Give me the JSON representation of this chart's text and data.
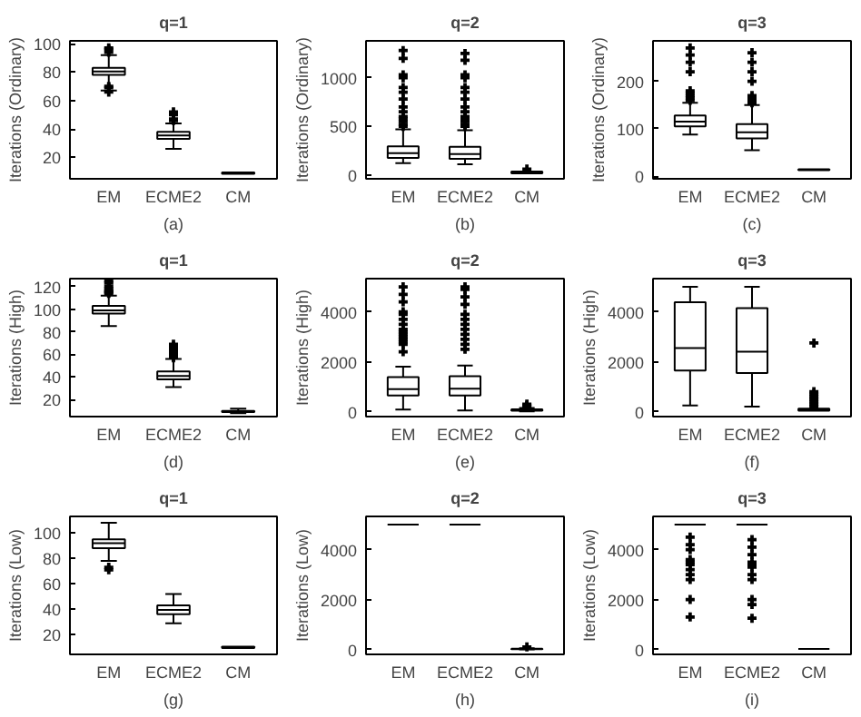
{
  "chart_data": [
    {
      "type": "box",
      "title": "q=1",
      "xlabel": "(a)",
      "ylabel": "Iterations (Ordinary)",
      "categories": [
        "EM",
        "ECME2",
        "CM"
      ],
      "ylim": [
        5,
        102
      ],
      "yticks": [
        20,
        40,
        60,
        80,
        100
      ],
      "grid": false,
      "marker": "cross",
      "boxes": [
        {
          "low": 67,
          "q1": 78,
          "median": 80.5,
          "q3": 83,
          "high": 92,
          "outliers": [
            94,
            96,
            97,
            70,
            69,
            66
          ]
        },
        {
          "low": 26,
          "q1": 33,
          "median": 35.5,
          "q3": 38,
          "high": 44,
          "outliers": [
            46,
            47,
            50,
            52
          ]
        },
        {
          "low": 8.5,
          "q1": 8.5,
          "median": 9,
          "q3": 9.5,
          "high": 9.5
        }
      ]
    },
    {
      "type": "box",
      "title": "q=2",
      "xlabel": "(b)",
      "ylabel": "Iterations (Ordinary)",
      "categories": [
        "EM",
        "ECME2",
        "CM"
      ],
      "ylim": [
        -40,
        1380
      ],
      "yticks": [
        0,
        500,
        1000
      ],
      "grid": false,
      "marker": "cross",
      "boxes": [
        {
          "low": 120,
          "q1": 175,
          "median": 225,
          "q3": 295,
          "high": 470,
          "outliers": [
            500,
            520,
            550,
            580,
            600,
            650,
            700,
            780,
            850,
            900,
            1000,
            1030,
            1200,
            1280
          ]
        },
        {
          "low": 110,
          "q1": 165,
          "median": 215,
          "q3": 290,
          "high": 460,
          "outliers": [
            500,
            520,
            550,
            580,
            600,
            650,
            700,
            780,
            850,
            900,
            1000,
            1030,
            1180,
            1250
          ]
        },
        {
          "low": 15,
          "q1": 15,
          "median": 25,
          "q3": 35,
          "high": 35,
          "outliers": [
            60
          ]
        }
      ]
    },
    {
      "type": "box",
      "title": "q=3",
      "xlabel": "(c)",
      "ylabel": "Iterations (Ordinary)",
      "categories": [
        "EM",
        "ECME2",
        "CM"
      ],
      "ylim": [
        -5,
        285
      ],
      "yticks": [
        0,
        100,
        200
      ],
      "grid": false,
      "marker": "cross",
      "boxes": [
        {
          "low": 88,
          "q1": 105,
          "median": 115,
          "q3": 128,
          "high": 155,
          "outliers": [
            160,
            165,
            170,
            175,
            180,
            220,
            240,
            255,
            270
          ]
        },
        {
          "low": 55,
          "q1": 80,
          "median": 93,
          "q3": 110,
          "high": 150,
          "outliers": [
            155,
            160,
            165,
            170,
            200,
            220,
            240,
            260
          ]
        },
        {
          "low": 13,
          "q1": 13,
          "median": 14,
          "q3": 15,
          "high": 15
        }
      ]
    },
    {
      "type": "box",
      "title": "q=1",
      "xlabel": "(d)",
      "ylabel": "Iterations (High)",
      "categories": [
        "EM",
        "ECME2",
        "CM"
      ],
      "ylim": [
        5,
        127
      ],
      "yticks": [
        20,
        40,
        60,
        80,
        100,
        120
      ],
      "grid": false,
      "marker": "cross",
      "boxes": [
        {
          "low": 85,
          "q1": 96,
          "median": 99,
          "q3": 103,
          "high": 112,
          "outliers": [
            114,
            115,
            116,
            118,
            120,
            123,
            125
          ]
        },
        {
          "low": 31,
          "q1": 38,
          "median": 41,
          "q3": 45,
          "high": 56,
          "outliers": [
            57,
            58,
            60,
            62,
            65,
            67,
            69
          ]
        },
        {
          "low": 8,
          "q1": 9,
          "median": 9.5,
          "q3": 10,
          "high": 12
        }
      ]
    },
    {
      "type": "box",
      "title": "q=2",
      "xlabel": "(e)",
      "ylabel": "Iterations (High)",
      "categories": [
        "EM",
        "ECME2",
        "CM"
      ],
      "ylim": [
        -200,
        5330
      ],
      "yticks": [
        0,
        2000,
        4000
      ],
      "grid": false,
      "marker": "cross",
      "boxes": [
        {
          "low": 80,
          "q1": 650,
          "median": 900,
          "q3": 1380,
          "high": 1800,
          "outliers": [
            2400,
            2700,
            2800,
            2900,
            3000,
            3100,
            3200,
            3300,
            3500,
            3700,
            3900,
            4000,
            4400,
            4700,
            5000
          ]
        },
        {
          "low": 50,
          "q1": 650,
          "median": 920,
          "q3": 1420,
          "high": 1850,
          "outliers": [
            2500,
            2700,
            2900,
            3100,
            3300,
            3500,
            3700,
            3900,
            4300,
            4600,
            4900,
            5000
          ]
        },
        {
          "low": 10,
          "q1": 40,
          "median": 60,
          "q3": 90,
          "high": 150,
          "outliers": [
            200,
            250,
            300
          ]
        }
      ]
    },
    {
      "type": "box",
      "title": "q=3",
      "xlabel": "(f)",
      "ylabel": "Iterations (High)",
      "categories": [
        "EM",
        "ECME2",
        "CM"
      ],
      "ylim": [
        -200,
        5330
      ],
      "yticks": [
        0,
        2000,
        4000
      ],
      "grid": false,
      "marker": "cross",
      "boxes": [
        {
          "low": 250,
          "q1": 1650,
          "median": 2550,
          "q3": 4380,
          "high": 5000
        },
        {
          "low": 200,
          "q1": 1550,
          "median": 2400,
          "q3": 4150,
          "high": 5000
        },
        {
          "low": 40,
          "q1": 40,
          "median": 80,
          "q3": 120,
          "high": 120,
          "outliers": [
            200,
            300,
            400,
            500,
            600,
            700,
            800,
            2750
          ]
        }
      ]
    },
    {
      "type": "box",
      "title": "q=1",
      "xlabel": "(g)",
      "ylabel": "Iterations (Low)",
      "categories": [
        "EM",
        "ECME2",
        "CM"
      ],
      "ylim": [
        4.5,
        113
      ],
      "yticks": [
        20,
        40,
        60,
        80,
        100
      ],
      "grid": false,
      "marker": "cross",
      "boxes": [
        {
          "low": 78,
          "q1": 88,
          "median": 92,
          "q3": 95,
          "high": 108,
          "outliers": [
            73,
            71
          ]
        },
        {
          "low": 29,
          "q1": 36,
          "median": 39.5,
          "q3": 43,
          "high": 52
        },
        {
          "low": 9.5,
          "q1": 9.5,
          "median": 10,
          "q3": 10.5,
          "high": 10.5
        }
      ]
    },
    {
      "type": "box",
      "title": "q=2",
      "xlabel": "(h)",
      "ylabel": "Iterations (Low)",
      "categories": [
        "EM",
        "ECME2",
        "CM"
      ],
      "ylim": [
        -200,
        5330
      ],
      "yticks": [
        0,
        2000,
        4000
      ],
      "grid": false,
      "marker": "cross",
      "boxes": [
        {
          "low": 5000,
          "q1": 5000,
          "median": 5000,
          "q3": 5000,
          "high": 5000
        },
        {
          "low": 5000,
          "q1": 5000,
          "median": 5000,
          "q3": 5000,
          "high": 5000
        },
        {
          "low": 0,
          "q1": 10,
          "median": 20,
          "q3": 30,
          "high": 50,
          "outliers": [
            100
          ]
        }
      ]
    },
    {
      "type": "box",
      "title": "q=3",
      "xlabel": "(i)",
      "ylabel": "Iterations (Low)",
      "categories": [
        "EM",
        "ECME2",
        "CM"
      ],
      "ylim": [
        -200,
        5330
      ],
      "yticks": [
        0,
        2000,
        4000
      ],
      "grid": false,
      "marker": "cross",
      "boxes": [
        {
          "low": 5000,
          "q1": 5000,
          "median": 5000,
          "q3": 5000,
          "high": 5000,
          "outliers": [
            1300,
            2000,
            2800,
            3000,
            3200,
            3400,
            3500,
            3600,
            4000,
            4200,
            4500
          ]
        },
        {
          "low": 5000,
          "q1": 5000,
          "median": 5000,
          "q3": 5000,
          "high": 5000,
          "outliers": [
            1250,
            1800,
            2000,
            2800,
            3000,
            3300,
            3400,
            3500,
            3800,
            4100,
            4400
          ]
        },
        {
          "low": 20,
          "q1": 20,
          "median": 20,
          "q3": 20,
          "high": 20
        }
      ]
    }
  ]
}
